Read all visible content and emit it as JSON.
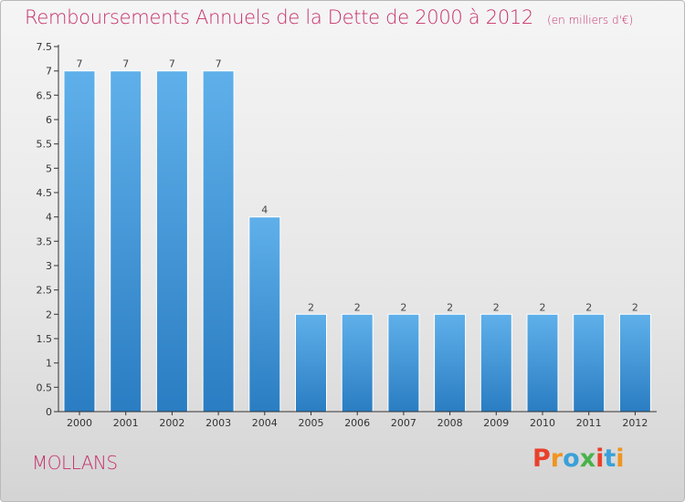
{
  "header": {
    "title": "Remboursements Annuels de la Dette de 2000 à 2012",
    "subtitle": "(en milliers d'€)"
  },
  "footer": {
    "commune": "MOLLANS",
    "logo_text": "Proxiti",
    "logo_colors": [
      "#e8412b",
      "#f09420",
      "#3aa0d8",
      "#49b24a",
      "#e8412b",
      "#3aa0d8",
      "#f09420"
    ]
  },
  "colors": {
    "title": "#c6306b",
    "bar_top": "#5fb0ea",
    "bar_bottom": "#2a7dc2",
    "axis": "#333333"
  },
  "chart_data": {
    "type": "bar",
    "categories": [
      "2000",
      "2001",
      "2002",
      "2003",
      "2004",
      "2005",
      "2006",
      "2007",
      "2008",
      "2009",
      "2010",
      "2011",
      "2012"
    ],
    "values": [
      7,
      7,
      7,
      7,
      4,
      2,
      2,
      2,
      2,
      2,
      2,
      2,
      2
    ],
    "data_labels": [
      "7",
      "7",
      "7",
      "7",
      "4",
      "2",
      "2",
      "2",
      "2",
      "2",
      "2",
      "2",
      "2"
    ],
    "yticks": [
      0,
      0.5,
      1,
      1.5,
      2,
      2.5,
      3,
      3.5,
      4,
      4.5,
      5,
      5.5,
      6,
      6.5,
      7,
      7.5
    ],
    "ytick_labels": [
      "0",
      "0.5",
      "1",
      "1.5",
      "2",
      "2.5",
      "3",
      "3.5",
      "4",
      "4.5",
      "5",
      "5.5",
      "6",
      "6.5",
      "7",
      "7.5"
    ],
    "ylim": [
      0,
      7.5
    ],
    "grid": false,
    "title": "Remboursements Annuels de la Dette de 2000 à 2012",
    "xlabel": "",
    "ylabel": ""
  }
}
